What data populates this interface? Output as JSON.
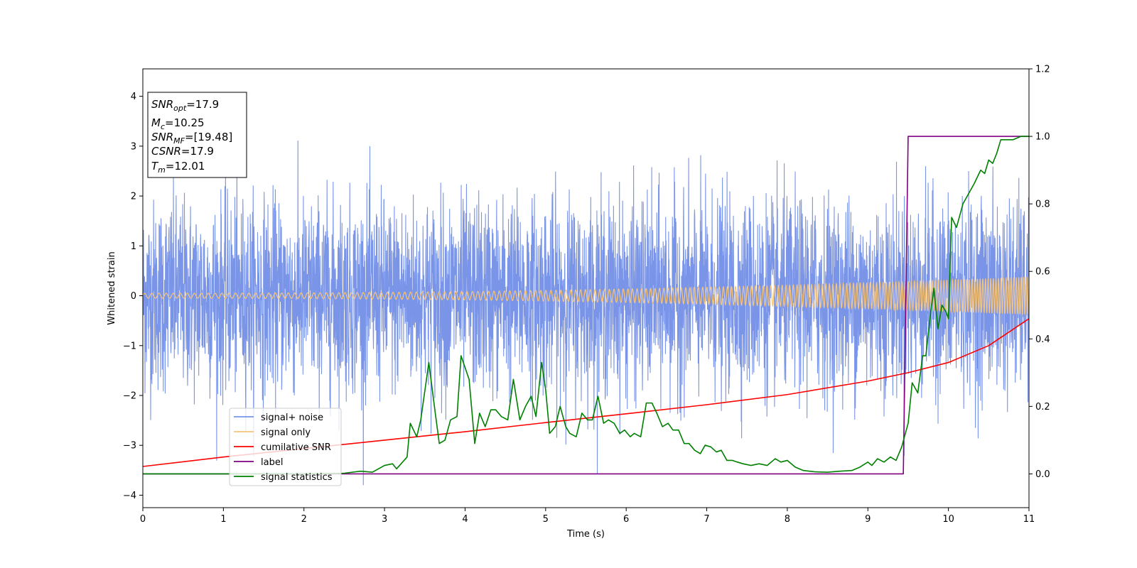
{
  "chart_data": {
    "type": "line",
    "xlabel": "Time (s)",
    "ylabel": "Whitened strain",
    "xlim": [
      0,
      11
    ],
    "ylim_left": [
      -4.25,
      4.55
    ],
    "ylim_right": [
      -0.1,
      1.2
    ],
    "x_ticks": [
      0,
      1,
      2,
      3,
      4,
      5,
      6,
      7,
      8,
      9,
      10,
      11
    ],
    "y_left_ticks": [
      -4,
      -3,
      -2,
      -1,
      0,
      1,
      2,
      3,
      4
    ],
    "y_right_ticks": [
      "0.0",
      "0.2",
      "0.4",
      "0.6",
      "0.8",
      "1.0",
      "1.2"
    ],
    "grid": false,
    "legend_position": "lower-left",
    "info_box": {
      "lines": [
        {
          "sym": "SNR",
          "sub": "opt",
          "value": "=17.9"
        },
        {
          "sym": "M",
          "sub": "c",
          "value": "=10.25"
        },
        {
          "sym": "SNR",
          "sub": "MF",
          "value": "=[19.48]"
        },
        {
          "sym": "CSNR",
          "sub": "",
          "value": "=17.9"
        },
        {
          "sym": "T",
          "sub": "m",
          "value": "=12.01"
        }
      ]
    },
    "series": [
      {
        "name": "signal+ noise",
        "axis": "left",
        "color": "#7a95e8",
        "style": "noise",
        "description_range": [
          -3.8,
          3.5
        ]
      },
      {
        "name": "signal only",
        "axis": "left",
        "color": "#f6c47a",
        "style": "chirp",
        "amplitude_start": 0.05,
        "amplitude_end": 0.38,
        "period_start": 0.09,
        "period_end": 0.03
      },
      {
        "name": "cumilative SNR",
        "axis": "right",
        "color": "#ff0000",
        "x": [
          0,
          1,
          2,
          3,
          4,
          5,
          6,
          7,
          8,
          9,
          9.5,
          10,
          10.5,
          11
        ],
        "y": [
          0.022,
          0.05,
          0.075,
          0.1,
          0.125,
          0.152,
          0.178,
          0.205,
          0.235,
          0.275,
          0.3,
          0.33,
          0.38,
          0.46
        ]
      },
      {
        "name": "label",
        "axis": "right",
        "color": "#800080",
        "x": [
          0,
          9.44,
          9.5,
          11
        ],
        "y": [
          0,
          0,
          1,
          1
        ]
      },
      {
        "name": "signal statistics",
        "axis": "right",
        "color": "#008000",
        "x": [
          0,
          0.5,
          1,
          1.5,
          2,
          2.5,
          2.7,
          2.85,
          3.0,
          3.1,
          3.15,
          3.28,
          3.32,
          3.4,
          3.45,
          3.55,
          3.63,
          3.68,
          3.75,
          3.82,
          3.9,
          3.95,
          4.05,
          4.12,
          4.18,
          4.25,
          4.32,
          4.38,
          4.45,
          4.53,
          4.6,
          4.68,
          4.75,
          4.82,
          4.88,
          4.95,
          5.0,
          5.05,
          5.12,
          5.18,
          5.25,
          5.3,
          5.38,
          5.45,
          5.52,
          5.58,
          5.65,
          5.72,
          5.78,
          5.85,
          5.92,
          5.98,
          6.05,
          6.1,
          6.18,
          6.25,
          6.32,
          6.38,
          6.45,
          6.52,
          6.58,
          6.65,
          6.72,
          6.78,
          6.85,
          6.92,
          6.98,
          7.05,
          7.12,
          7.18,
          7.25,
          7.32,
          7.38,
          7.45,
          7.55,
          7.65,
          7.75,
          7.85,
          7.92,
          8.0,
          8.1,
          8.2,
          8.35,
          8.5,
          8.65,
          8.8,
          8.9,
          9.0,
          9.05,
          9.12,
          9.2,
          9.28,
          9.35,
          9.42,
          9.5,
          9.55,
          9.62,
          9.68,
          9.72,
          9.78,
          9.82,
          9.87,
          9.92,
          9.97,
          10.0,
          10.04,
          10.1,
          10.18,
          10.25,
          10.32,
          10.4,
          10.45,
          10.5,
          10.55,
          10.6,
          10.65,
          10.7,
          10.8,
          10.9,
          11.0
        ],
        "y": [
          0.0,
          0.0,
          0.0,
          0.0,
          0.0,
          0.002,
          0.008,
          0.005,
          0.025,
          0.03,
          0.015,
          0.05,
          0.15,
          0.11,
          0.16,
          0.33,
          0.18,
          0.09,
          0.1,
          0.16,
          0.17,
          0.35,
          0.28,
          0.09,
          0.18,
          0.14,
          0.19,
          0.19,
          0.17,
          0.16,
          0.28,
          0.16,
          0.2,
          0.23,
          0.17,
          0.33,
          0.25,
          0.12,
          0.14,
          0.2,
          0.14,
          0.12,
          0.11,
          0.18,
          0.16,
          0.16,
          0.23,
          0.15,
          0.16,
          0.15,
          0.12,
          0.13,
          0.11,
          0.12,
          0.11,
          0.21,
          0.21,
          0.18,
          0.14,
          0.15,
          0.13,
          0.13,
          0.09,
          0.09,
          0.07,
          0.06,
          0.085,
          0.08,
          0.065,
          0.07,
          0.04,
          0.04,
          0.035,
          0.03,
          0.025,
          0.03,
          0.025,
          0.045,
          0.035,
          0.04,
          0.02,
          0.01,
          0.006,
          0.005,
          0.008,
          0.01,
          0.02,
          0.035,
          0.025,
          0.045,
          0.035,
          0.05,
          0.04,
          0.08,
          0.15,
          0.27,
          0.24,
          0.35,
          0.35,
          0.48,
          0.55,
          0.43,
          0.5,
          0.48,
          0.46,
          0.76,
          0.73,
          0.8,
          0.83,
          0.86,
          0.9,
          0.89,
          0.93,
          0.92,
          0.95,
          0.99,
          0.99,
          0.99,
          1.0,
          1.0
        ]
      }
    ]
  }
}
